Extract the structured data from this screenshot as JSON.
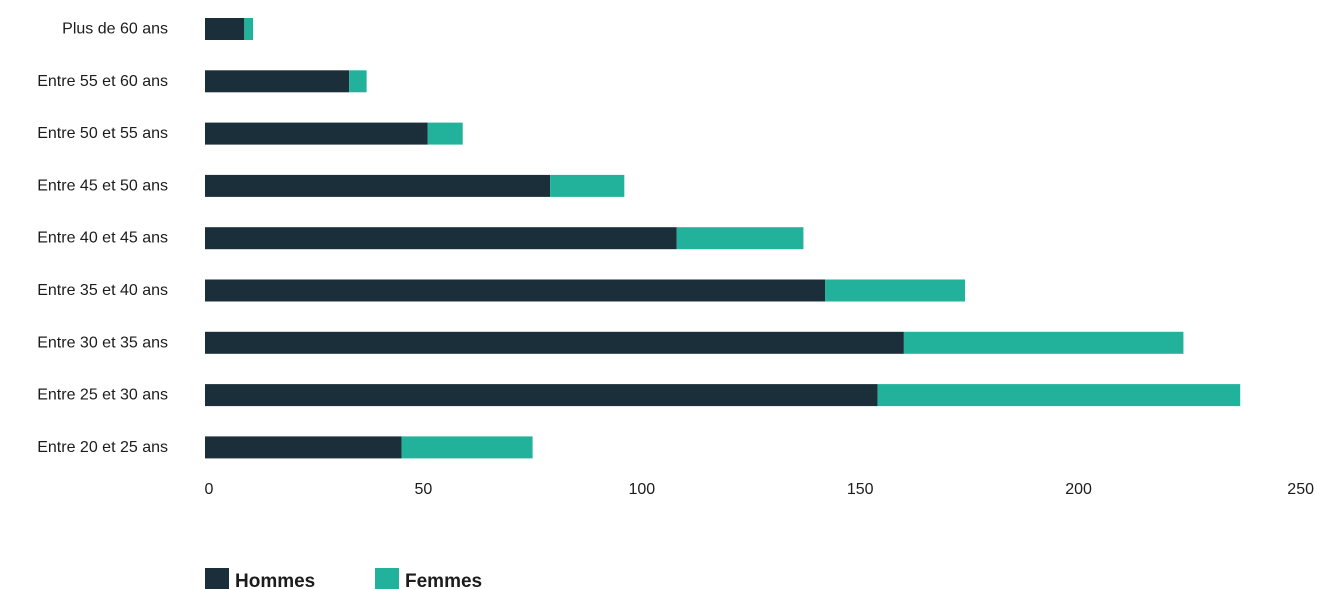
{
  "chart_data": {
    "type": "bar",
    "orientation": "horizontal",
    "stacked": true,
    "title": "",
    "xlabel": "",
    "ylabel": "",
    "categories": [
      "Plus de 60 ans",
      "Entre 55 et 60 ans",
      "Entre 50 et 55 ans",
      "Entre 45 et 50 ans",
      "Entre 40 et 45 ans",
      "Entre 35 et 40 ans",
      "Entre 30 et 35 ans",
      "Entre 25 et 30 ans",
      "Entre 20 et 25 ans"
    ],
    "series": [
      {
        "name": "Hommes",
        "color": "#1b2f3a",
        "values": [
          9,
          33,
          51,
          79,
          108,
          142,
          160,
          154,
          45
        ]
      },
      {
        "name": "Femmes",
        "color": "#22b29c",
        "values": [
          2,
          4,
          8,
          17,
          29,
          32,
          64,
          83,
          30
        ]
      }
    ],
    "xlim": [
      0,
      250
    ],
    "xticks": [
      "0",
      "50",
      "100",
      "150",
      "200",
      "250"
    ],
    "grid": false,
    "legend_position": "bottom-left"
  }
}
